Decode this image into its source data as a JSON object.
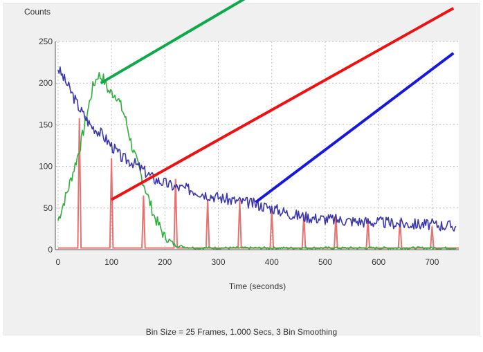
{
  "colors": {
    "panel_bg": "#f0f0f0",
    "plot_bg": "#ffffff",
    "grid": "#bdbdbd",
    "green": "#2fae3a",
    "blue": "#3a36a8",
    "red": "#e8706f",
    "pointer_green": "#0fa84a",
    "pointer_red": "#ee1111",
    "pointer_blue": "#1717dd"
  },
  "footer": "Bin Size = 25 Frames, 1.000 Secs, 3 Bin Smoothing",
  "chart_data": {
    "type": "line",
    "ylabel": "Counts",
    "xlabel": "Time (seconds)",
    "xlim": [
      -5,
      750
    ],
    "ylim": [
      0,
      250
    ],
    "xticks": [
      0,
      100,
      200,
      300,
      400,
      500,
      600,
      700
    ],
    "yticks": [
      0,
      50,
      100,
      150,
      200,
      250
    ],
    "grid": true,
    "series": [
      {
        "color": "green",
        "x": [
          0,
          20,
          40,
          55,
          65,
          75,
          85,
          95,
          110,
          125,
          140,
          160,
          180,
          200,
          220,
          240,
          260,
          280,
          300,
          340,
          400,
          460,
          520,
          580,
          640,
          700,
          745
        ],
        "y": [
          35,
          75,
          120,
          165,
          195,
          210,
          205,
          190,
          185,
          160,
          120,
          80,
          40,
          15,
          5,
          3,
          2,
          2,
          2,
          2,
          2,
          2,
          2,
          2,
          2,
          2,
          2
        ]
      },
      {
        "color": "blue",
        "x": [
          0,
          20,
          40,
          60,
          80,
          100,
          120,
          140,
          160,
          180,
          200,
          220,
          250,
          280,
          320,
          360,
          400,
          440,
          480,
          520,
          560,
          600,
          650,
          700,
          745
        ],
        "y": [
          218,
          195,
          170,
          150,
          140,
          125,
          110,
          105,
          95,
          85,
          80,
          75,
          72,
          66,
          60,
          56,
          50,
          42,
          38,
          36,
          34,
          33,
          31,
          30,
          28
        ]
      },
      {
        "color": "red",
        "baseline": 2,
        "peak_width": 6,
        "peaks": [
          {
            "x": 40,
            "y": 158
          },
          {
            "x": 100,
            "y": 110
          },
          {
            "x": 160,
            "y": 65
          },
          {
            "x": 220,
            "y": 85
          },
          {
            "x": 280,
            "y": 60
          },
          {
            "x": 340,
            "y": 60
          },
          {
            "x": 400,
            "y": 48
          },
          {
            "x": 460,
            "y": 42
          },
          {
            "x": 520,
            "y": 42
          },
          {
            "x": 580,
            "y": 38
          },
          {
            "x": 640,
            "y": 36
          },
          {
            "x": 700,
            "y": 28
          }
        ]
      }
    ],
    "annotations": [
      {
        "type": "pointer-line",
        "color": "green",
        "from": [
          80,
          200
        ],
        "to": [
          585,
          390
        ]
      },
      {
        "type": "pointer-line",
        "color": "red",
        "from": [
          100,
          60
        ],
        "to": [
          740,
          290
        ]
      },
      {
        "type": "pointer-line",
        "color": "blue",
        "from": [
          370,
          57
        ],
        "to": [
          740,
          236
        ]
      }
    ]
  }
}
